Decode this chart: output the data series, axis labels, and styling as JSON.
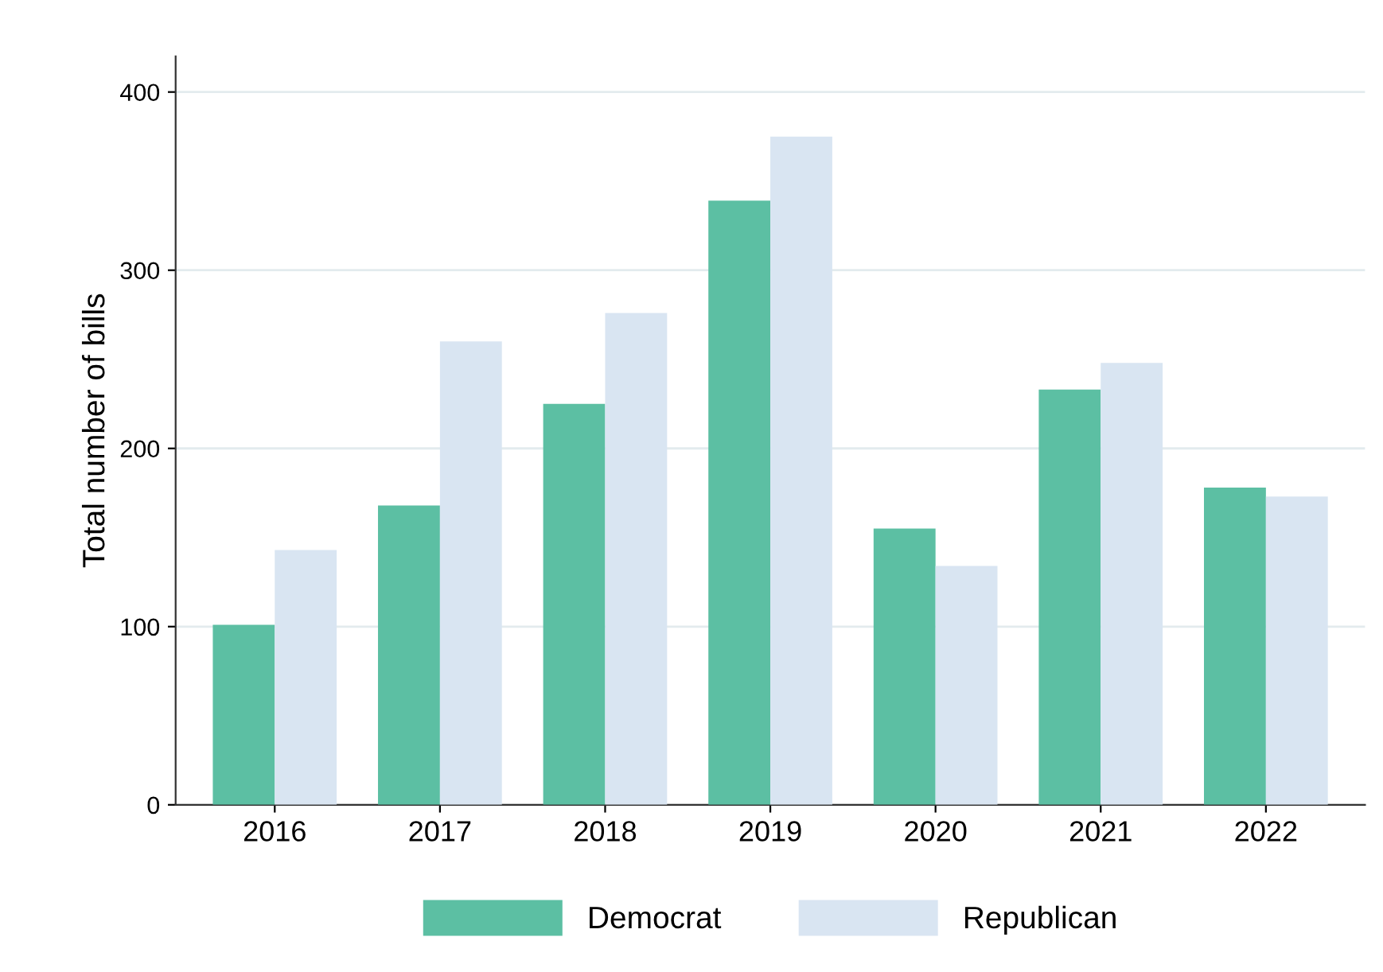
{
  "chart_data": {
    "type": "bar",
    "ylabel": "Total number of bills",
    "categories": [
      "2016",
      "2017",
      "2018",
      "2019",
      "2020",
      "2021",
      "2022"
    ],
    "series": [
      {
        "name": "Democrat",
        "color": "#5cbfa3",
        "values": [
          101,
          168,
          225,
          339,
          155,
          233,
          178
        ]
      },
      {
        "name": "Republican",
        "color": "#d9e5f2",
        "values": [
          143,
          260,
          276,
          375,
          134,
          248,
          173
        ]
      }
    ],
    "ylim": [
      0,
      420
    ],
    "yticks": [
      0,
      100,
      200,
      300,
      400
    ],
    "grid": "y",
    "legend": "bottom"
  }
}
